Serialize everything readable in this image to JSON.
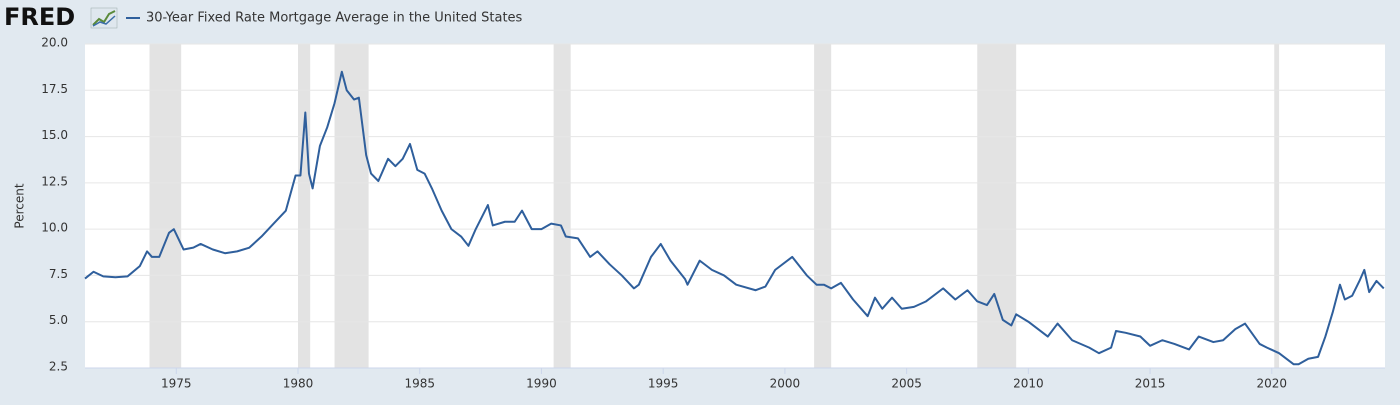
{
  "logo": "FRED",
  "chart_data": {
    "type": "line",
    "ylabel": "Percent",
    "series": [
      {
        "name": "30-Year Fixed Rate Mortgage Average in the United States",
        "color": "#2f5f9c",
        "x": [
          1971.25,
          1971.6,
          1972.0,
          1972.5,
          1973.0,
          1973.5,
          1973.8,
          1974.0,
          1974.3,
          1974.7,
          1974.9,
          1975.3,
          1975.7,
          1976.0,
          1976.5,
          1977.0,
          1977.5,
          1978.0,
          1978.5,
          1979.0,
          1979.5,
          1979.9,
          1980.1,
          1980.3,
          1980.45,
          1980.6,
          1980.9,
          1981.2,
          1981.5,
          1981.8,
          1982.0,
          1982.3,
          1982.5,
          1982.8,
          1983.0,
          1983.3,
          1983.7,
          1984.0,
          1984.3,
          1984.6,
          1984.9,
          1985.2,
          1985.5,
          1985.9,
          1986.3,
          1986.7,
          1987.0,
          1987.3,
          1987.8,
          1988.0,
          1988.5,
          1988.9,
          1989.2,
          1989.6,
          1990.0,
          1990.4,
          1990.8,
          1991.0,
          1991.5,
          1992.0,
          1992.3,
          1992.8,
          1993.3,
          1993.8,
          1994.0,
          1994.5,
          1994.9,
          1995.3,
          1995.9,
          1996.0,
          1996.5,
          1997.0,
          1997.5,
          1998.0,
          1998.8,
          1999.2,
          1999.6,
          2000.3,
          2000.6,
          2000.9,
          2001.3,
          2001.6,
          2001.9,
          2002.3,
          2002.8,
          2003.4,
          2003.7,
          2004.0,
          2004.4,
          2004.8,
          2005.3,
          2005.8,
          2006.5,
          2007.0,
          2007.5,
          2007.9,
          2008.3,
          2008.6,
          2008.95,
          2009.3,
          2009.5,
          2010.0,
          2010.8,
          2011.2,
          2011.8,
          2012.5,
          2012.9,
          2013.4,
          2013.6,
          2014.0,
          2014.6,
          2015.0,
          2015.5,
          2016.0,
          2016.6,
          2017.0,
          2017.6,
          2018.0,
          2018.5,
          2018.9,
          2019.5,
          2019.8,
          2020.3,
          2020.9,
          2021.1,
          2021.5,
          2021.9,
          2022.2,
          2022.5,
          2022.8,
          2023.0,
          2023.3,
          2023.6,
          2023.8,
          2024.0,
          2024.3,
          2024.6
        ],
        "values": [
          7.33,
          7.7,
          7.45,
          7.4,
          7.45,
          8.0,
          8.8,
          8.5,
          8.5,
          9.8,
          10.0,
          8.9,
          9.0,
          9.2,
          8.9,
          8.7,
          8.8,
          9.0,
          9.6,
          10.3,
          11.0,
          12.9,
          12.9,
          16.3,
          13.0,
          12.2,
          14.5,
          15.5,
          16.8,
          18.5,
          17.5,
          17.0,
          17.1,
          14.0,
          13.0,
          12.6,
          13.8,
          13.4,
          13.8,
          14.6,
          13.2,
          13.0,
          12.2,
          11.0,
          10.0,
          9.6,
          9.1,
          10.0,
          11.3,
          10.2,
          10.4,
          10.4,
          11.0,
          10.0,
          10.0,
          10.3,
          10.2,
          9.6,
          9.5,
          8.5,
          8.8,
          8.1,
          7.5,
          6.8,
          7.0,
          8.5,
          9.2,
          8.3,
          7.3,
          7.0,
          8.3,
          7.8,
          7.5,
          7.0,
          6.7,
          6.9,
          7.8,
          8.5,
          8.0,
          7.5,
          7.0,
          7.0,
          6.8,
          7.1,
          6.2,
          5.3,
          6.3,
          5.7,
          6.3,
          5.7,
          5.8,
          6.1,
          6.8,
          6.2,
          6.7,
          6.1,
          5.9,
          6.5,
          5.1,
          4.8,
          5.4,
          5.0,
          4.2,
          4.9,
          4.0,
          3.6,
          3.3,
          3.6,
          4.5,
          4.4,
          4.2,
          3.7,
          4.0,
          3.8,
          3.5,
          4.2,
          3.9,
          4.0,
          4.6,
          4.9,
          3.8,
          3.6,
          3.3,
          2.7,
          2.7,
          3.0,
          3.1,
          4.2,
          5.5,
          7.0,
          6.2,
          6.4,
          7.2,
          7.8,
          6.6,
          7.2,
          6.8
        ]
      }
    ],
    "recessions": [
      [
        1973.9,
        1975.2
      ],
      [
        1980.0,
        1980.5
      ],
      [
        1981.5,
        1982.9
      ],
      [
        1990.5,
        1991.2
      ],
      [
        2001.2,
        2001.9
      ],
      [
        2007.9,
        2009.5
      ],
      [
        2020.1,
        2020.3
      ]
    ],
    "xlim": [
      1971.25,
      2024.65
    ],
    "xticks": [
      1975,
      1980,
      1985,
      1990,
      1995,
      2000,
      2005,
      2010,
      2015,
      2020
    ],
    "ylim": [
      2.5,
      20
    ],
    "yticks": [
      2.5,
      {
        "value": 5,
        "label": "5.0"
      },
      7.5,
      {
        "value": 10,
        "label": "10.0"
      },
      12.5,
      {
        "value": 15,
        "label": "15.0"
      },
      17.5,
      {
        "value": 20,
        "label": "20.0"
      }
    ],
    "grid": true
  }
}
